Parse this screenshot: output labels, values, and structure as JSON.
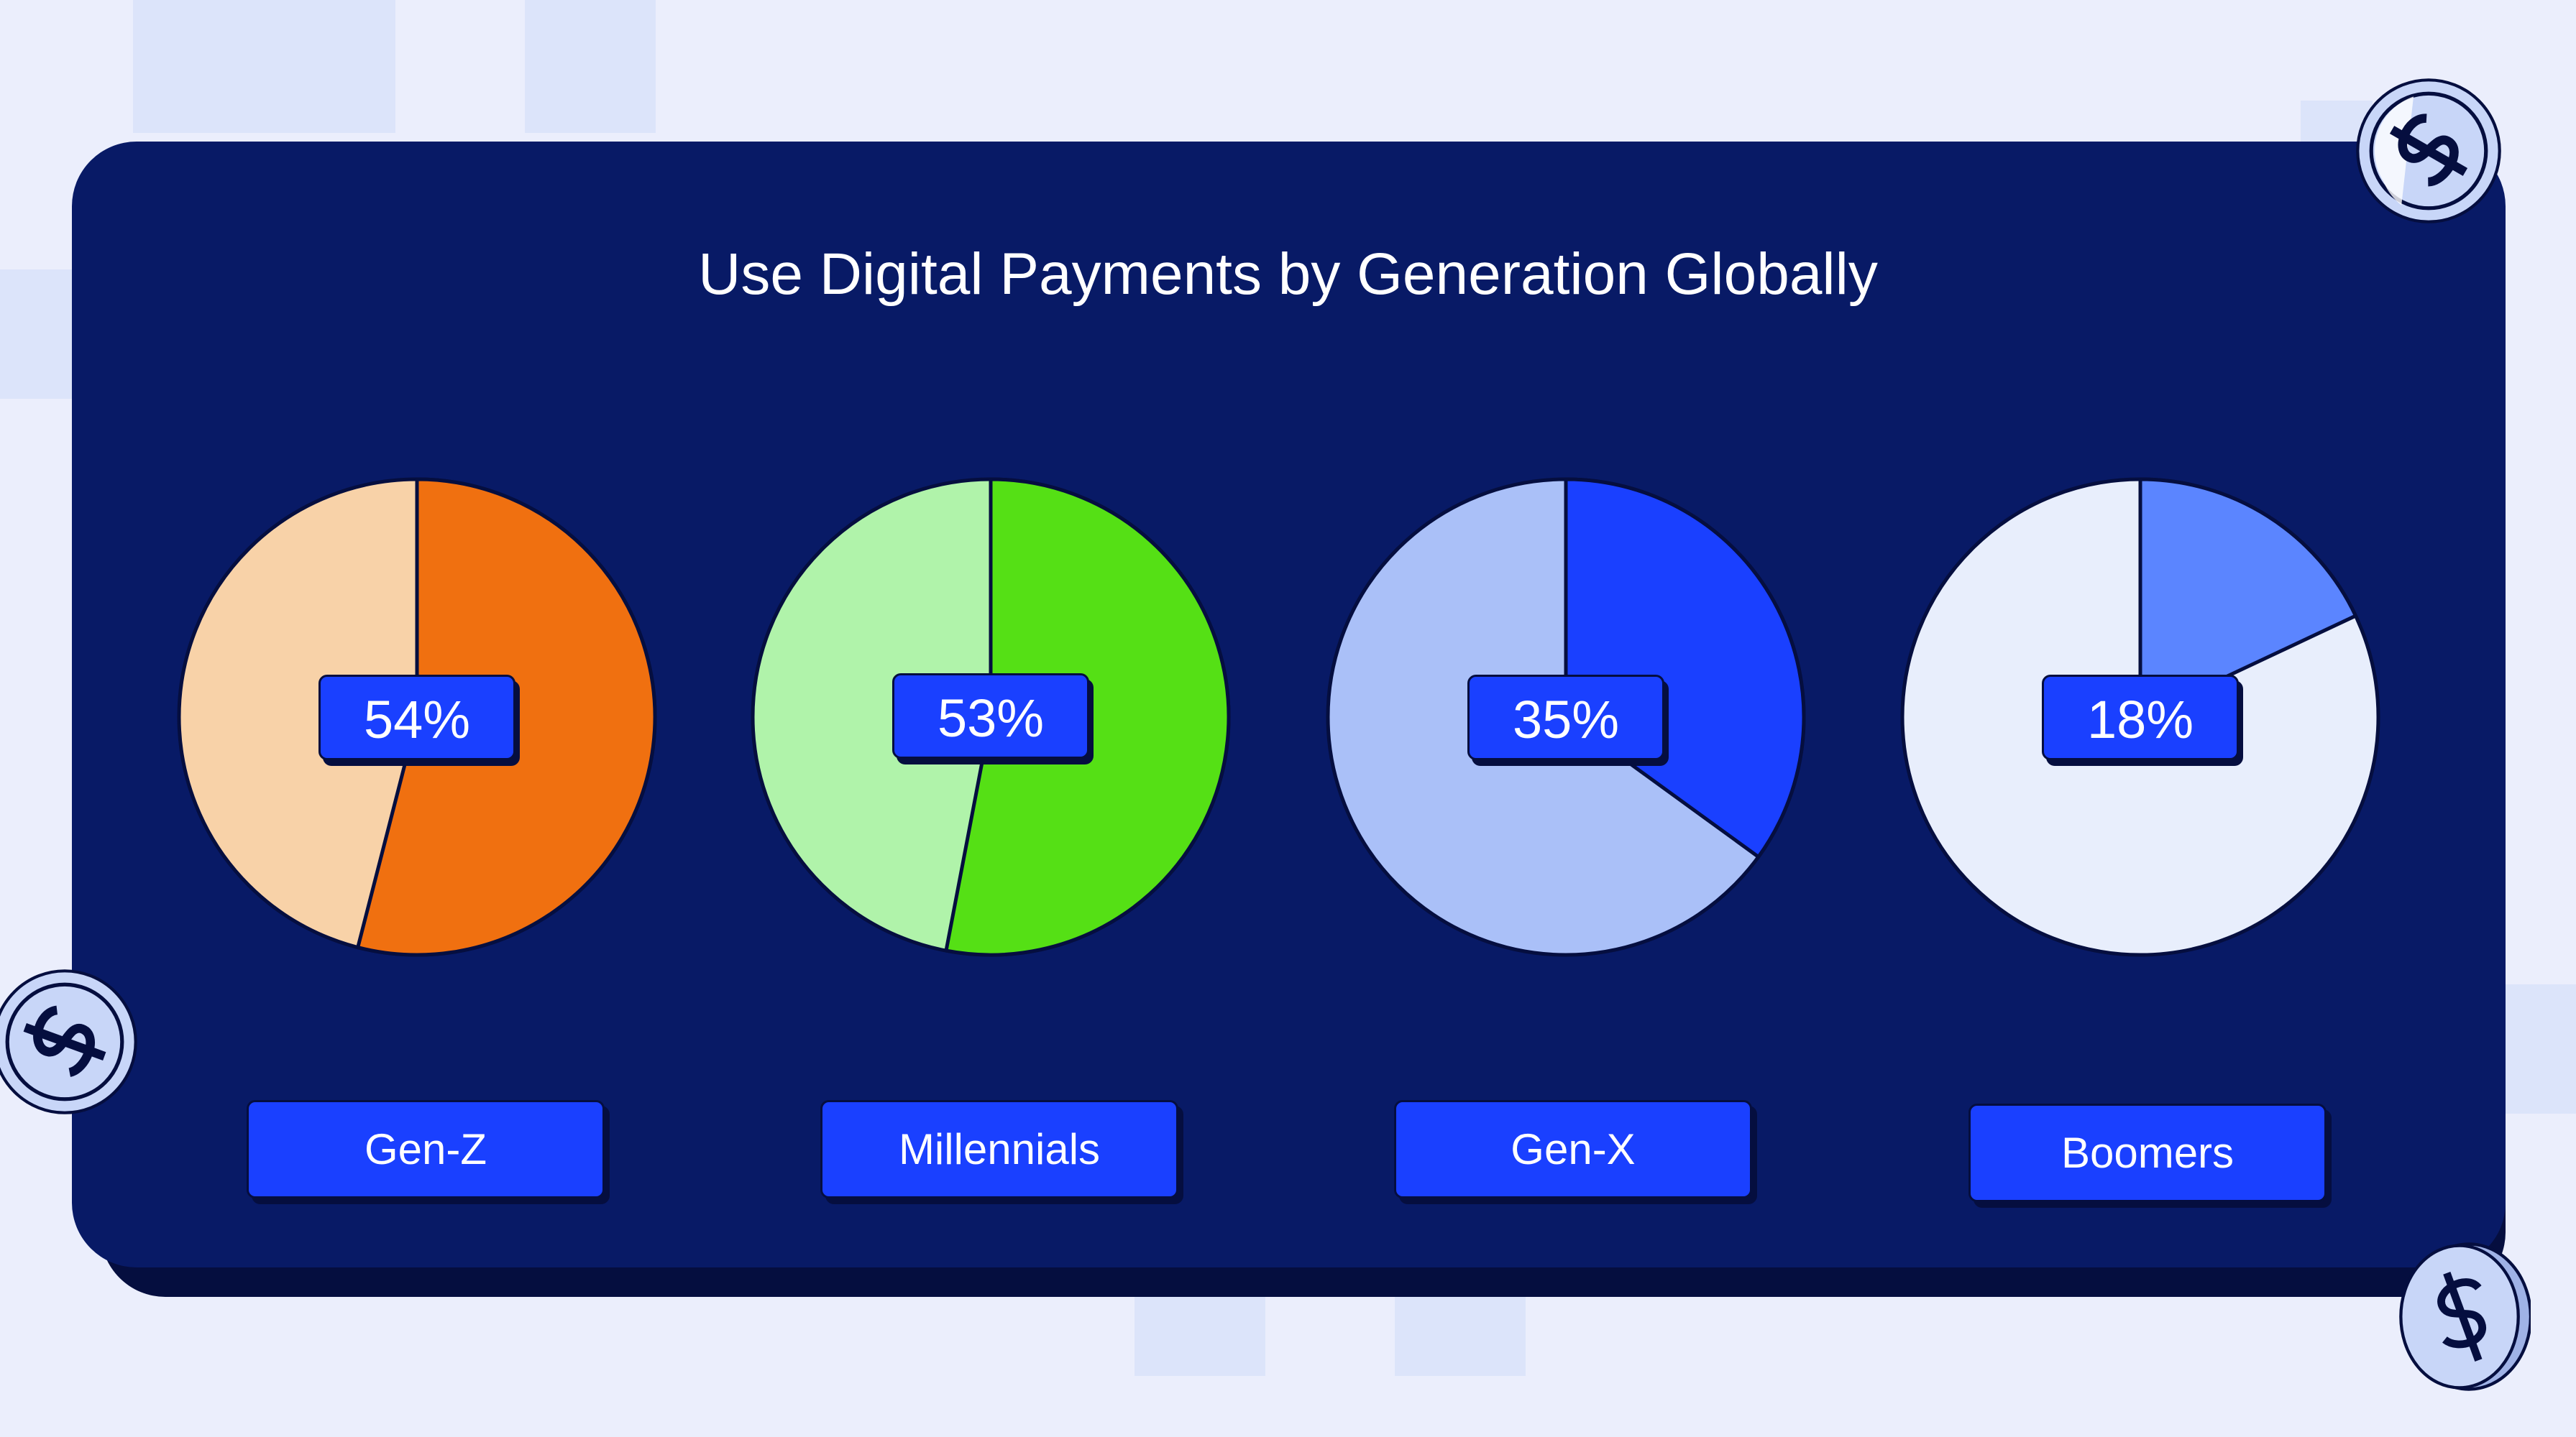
{
  "chart_data": {
    "type": "pie",
    "title": "Use Digital Payments by Generation Globally",
    "categories": [
      "Gen-Z",
      "Millennials",
      "Gen-X",
      "Boomers"
    ],
    "values": [
      54,
      53,
      35,
      18
    ],
    "value_labels": [
      "54%",
      "53%",
      "35%",
      "18%"
    ],
    "colors": [
      {
        "fill": "#F07010",
        "rest": "#F8D2A8"
      },
      {
        "fill": "#55E015",
        "rest": "#B0F3AA"
      },
      {
        "fill": "#1A40FF",
        "rest": "#AAC0F8"
      },
      {
        "fill": "#5B85FF",
        "rest": "#E8EEFC"
      }
    ],
    "legend": "below each pie"
  },
  "decor": {
    "icon": "dollar-coin-icon",
    "background": "#EBEEFC",
    "card": "#081A66",
    "accent": "#1A40FF"
  }
}
